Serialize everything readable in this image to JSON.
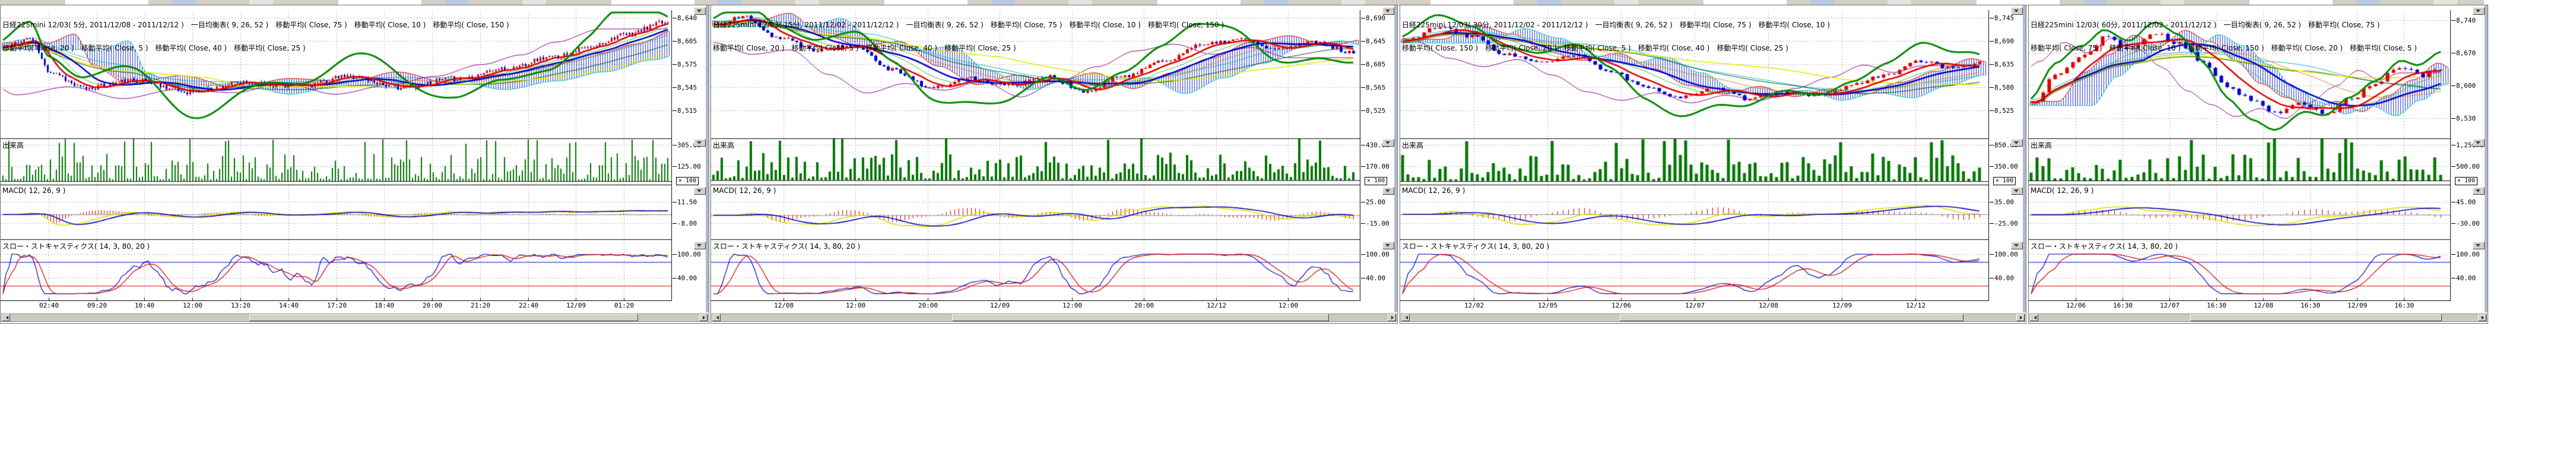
{
  "app": {
    "background": "#ffffff"
  },
  "colors": {
    "up_candle": "#e00000",
    "down_candle": "#0000d0",
    "cloud_hatch": "#2233cc",
    "cloud_edge_top": "#e00000",
    "cloud_edge_bottom": "#00cccc",
    "ma_thick_red": "#e00000",
    "ma_thick_blue": "#0000cc",
    "ma_green": "#008800",
    "ma_yellow": "#e8e800",
    "ma_cyan": "#00bbcc",
    "ma_purple": "#880088",
    "ma_orange": "#e08030",
    "ma_darkgreen": "#005500",
    "ma_lightgreen": "#44bb44",
    "volume_bar": "#007700",
    "macd_line": "#e0e000",
    "macd_signal": "#0000bb",
    "macd_hist": "#cc0000",
    "macd_zero": "#888888",
    "stoch_k": "#0000bb",
    "stoch_d": "#cc0000",
    "stoch_upper_line": "#0000cc",
    "stoch_lower_line": "#cc0000",
    "grid": "#b0b0b0",
    "separator": "#000000"
  },
  "panels": [
    {
      "title_line1": "日経225mini 12/03( 5分, 2011/12/08 - 2011/12/12 )　一目均衡表( 9, 26, 52 )　移動平均( Close, 75 )　移動平均( Close, 10 )　移動平均( Close, 150 )",
      "title_line2": "移動平均( Close, 20 )　移動平均( Close, 5 )　移動平均( Close, 40 )　移動平均( Close, 25 )",
      "volume_label": "出来高",
      "macd_label": "MACD( 12, 26, 9 )",
      "stoch_label": "スロー・ストキャスティクス( 14, 3, 80, 20 )",
      "multiplier": "× 100",
      "price_ticks": [
        "8,640",
        "8,605",
        "8,575",
        "8,545",
        "8,515"
      ],
      "volume_ticks": [
        "305.00",
        "125.00"
      ],
      "macd_ticks": [
        "11.50",
        "-8.00"
      ],
      "stoch_ticks": [
        "100.00",
        "40.00"
      ],
      "x_ticks": [
        "02:40",
        "09:20",
        "10:40",
        "12:00",
        "13:20",
        "14:40",
        "17:20",
        "18:40",
        "20:00",
        "21:20",
        "22:40",
        "12/09",
        "01:20"
      ],
      "series": {
        "keys": [
          [
            0,
            8600
          ],
          [
            0.04,
            8612
          ],
          [
            0.07,
            8568
          ],
          [
            0.12,
            8545
          ],
          [
            0.2,
            8556
          ],
          [
            0.28,
            8540
          ],
          [
            0.36,
            8552
          ],
          [
            0.45,
            8548
          ],
          [
            0.52,
            8561
          ],
          [
            0.6,
            8546
          ],
          [
            0.68,
            8558
          ],
          [
            0.75,
            8570
          ],
          [
            0.82,
            8586
          ],
          [
            0.88,
            8599
          ],
          [
            0.93,
            8616
          ],
          [
            1,
            8634
          ]
        ],
        "bar_step": 5,
        "noise": 7,
        "seed": 11,
        "green_amp": 26,
        "green_per": 15
      }
    },
    {
      "title_line1": "日経225mini 12/03( 15分, 2011/12/02 - 2011/12/12 )　一目均衡表( 9, 26, 52 )　移動平均( Close, 75 )　移動平均( Close, 10 )　移動平均( Close, 150 )",
      "title_line2": "移動平均( Close, 20 )　移動平均( Close, 5 )　移動平均( Close, 40 )　移動平均( Close, 25 )",
      "volume_label": "出来高",
      "macd_label": "MACD( 12, 26, 9 )",
      "stoch_label": "スロー・ストキャスティクス( 14, 3, 80, 20 )",
      "multiplier": "× 100",
      "price_ticks": [
        "8,690",
        "8,645",
        "8,605",
        "8,565",
        "8,525"
      ],
      "volume_ticks": [
        "430.00",
        "170.00"
      ],
      "macd_ticks": [
        "25.00",
        "-15.00"
      ],
      "stoch_ticks": [
        "100.00",
        "40.00"
      ],
      "x_ticks": [
        "12/08",
        "12:00",
        "20:00",
        "12/09",
        "12:00",
        "20:00",
        "12/12",
        "12:00"
      ],
      "series": {
        "keys": [
          [
            0,
            8678
          ],
          [
            0.05,
            8692
          ],
          [
            0.1,
            8655
          ],
          [
            0.16,
            8634
          ],
          [
            0.22,
            8642
          ],
          [
            0.28,
            8598
          ],
          [
            0.34,
            8565
          ],
          [
            0.4,
            8582
          ],
          [
            0.46,
            8570
          ],
          [
            0.52,
            8586
          ],
          [
            0.58,
            8558
          ],
          [
            0.64,
            8586
          ],
          [
            0.7,
            8612
          ],
          [
            0.76,
            8640
          ],
          [
            0.82,
            8652
          ],
          [
            0.88,
            8634
          ],
          [
            0.94,
            8646
          ],
          [
            1,
            8628
          ]
        ],
        "bar_step": 7,
        "noise": 8,
        "seed": 22,
        "green_amp": 30,
        "green_per": 11
      }
    },
    {
      "title_line1": "日経225mini 12/03( 30分, 2011/12/02 - 2011/12/12 )　一目均衡表( 9, 26, 52 )　移動平均( Close, 75 )　移動平均( Close, 10 )",
      "title_line2": "移動平均( Close, 150 )　移動平均( Close, 20 )　移動平均( Close, 5 )　移動平均( Close, 40 )　移動平均( Close, 25 )",
      "volume_label": "出来高",
      "macd_label": "MACD( 12, 26, 9 )",
      "stoch_label": "スロー・ストキャスティクス( 14, 3, 80, 20 )",
      "multiplier": "× 100",
      "price_ticks": [
        "8,745",
        "8,690",
        "8,635",
        "8,580",
        "8,525"
      ],
      "volume_ticks": [
        "850.00",
        "350.00"
      ],
      "macd_ticks": [
        "35.00",
        "-25.00"
      ],
      "stoch_ticks": [
        "100.00",
        "40.00"
      ],
      "x_ticks": [
        "12/02",
        "12/05",
        "12/06",
        "12/07",
        "12/08",
        "12/09",
        "12/12"
      ],
      "series": {
        "keys": [
          [
            0,
            8688
          ],
          [
            0.06,
            8722
          ],
          [
            0.12,
            8700
          ],
          [
            0.18,
            8658
          ],
          [
            0.24,
            8638
          ],
          [
            0.3,
            8655
          ],
          [
            0.36,
            8618
          ],
          [
            0.42,
            8578
          ],
          [
            0.48,
            8558
          ],
          [
            0.54,
            8576
          ],
          [
            0.6,
            8552
          ],
          [
            0.66,
            8570
          ],
          [
            0.72,
            8558
          ],
          [
            0.78,
            8586
          ],
          [
            0.84,
            8612
          ],
          [
            0.9,
            8642
          ],
          [
            0.95,
            8624
          ],
          [
            1,
            8640
          ]
        ],
        "bar_step": 9,
        "noise": 9,
        "seed": 33,
        "green_amp": 34,
        "green_per": 9
      }
    },
    {
      "title_line1": "日経225mini 12/03( 60分, 2011/12/02 - 2011/12/12 )　一目均衡表( 9, 26, 52 )　移動平均( Close, 75 )",
      "title_line2": "移動平均( Close, 75 )　移動平均( Close, 10 )　移動平均( Close, 150 )　移動平均( Close, 20 )　移動平均( Close, 5 )",
      "volume_label": "出来高",
      "macd_label": "MACD( 12, 26, 9 )",
      "stoch_label": "スロー・ストキャスティクス( 14, 3, 80, 20 )",
      "multiplier": "× 100",
      "price_ticks": [
        "8,740",
        "8,670",
        "8,600",
        "8,530"
      ],
      "volume_ticks": [
        "1,250.00",
        "500.00"
      ],
      "macd_ticks": [
        "45.00",
        "-30.00"
      ],
      "stoch_ticks": [
        "100.00",
        "40.00"
      ],
      "x_ticks": [
        "12/06",
        "16:30",
        "12/07",
        "16:30",
        "12/08",
        "16:30",
        "12/09",
        "16:30"
      ],
      "series": {
        "keys": [
          [
            0,
            8560
          ],
          [
            0.06,
            8622
          ],
          [
            0.12,
            8660
          ],
          [
            0.18,
            8702
          ],
          [
            0.24,
            8678
          ],
          [
            0.3,
            8712
          ],
          [
            0.36,
            8688
          ],
          [
            0.42,
            8648
          ],
          [
            0.48,
            8598
          ],
          [
            0.54,
            8568
          ],
          [
            0.6,
            8542
          ],
          [
            0.66,
            8560
          ],
          [
            0.72,
            8538
          ],
          [
            0.78,
            8572
          ],
          [
            0.84,
            8606
          ],
          [
            0.9,
            8642
          ],
          [
            0.95,
            8620
          ],
          [
            1,
            8636
          ]
        ],
        "bar_step": 10,
        "noise": 10,
        "seed": 44,
        "green_amp": 30,
        "green_per": 8
      }
    }
  ]
}
